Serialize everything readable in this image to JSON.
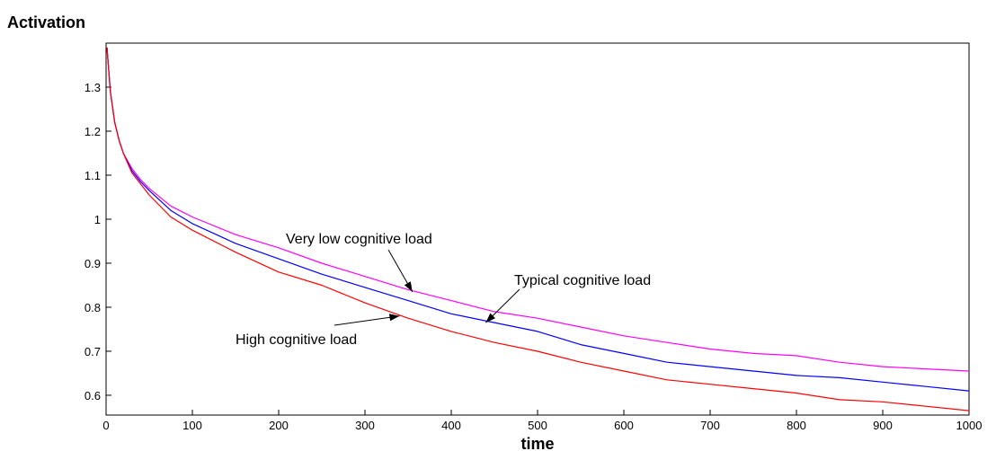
{
  "chart_data": {
    "type": "line",
    "ylabel": "Activation",
    "xlabel": "time",
    "xlim": [
      0,
      1000
    ],
    "ylim": [
      0.555,
      1.4
    ],
    "xticks": [
      0,
      100,
      200,
      300,
      400,
      500,
      600,
      700,
      800,
      900,
      1000
    ],
    "yticks": [
      0.6,
      0.7,
      0.8,
      0.9,
      1,
      1.1,
      1.2,
      1.3
    ],
    "ytick_labels": [
      "0.6",
      "0.7",
      "0.8",
      "0.9",
      "1",
      "1.1",
      "1.2",
      "1.3"
    ],
    "grid": false,
    "x": [
      1,
      5,
      10,
      15,
      20,
      30,
      40,
      50,
      75,
      100,
      150,
      200,
      250,
      300,
      350,
      400,
      450,
      500,
      550,
      600,
      650,
      700,
      750,
      800,
      850,
      900,
      950,
      1000
    ],
    "series": [
      {
        "key": "very_low",
        "color": "#ff00ff",
        "values": [
          1.39,
          1.29,
          1.22,
          1.18,
          1.15,
          1.115,
          1.09,
          1.07,
          1.03,
          1.005,
          0.965,
          0.935,
          0.9,
          0.87,
          0.84,
          0.815,
          0.79,
          0.775,
          0.755,
          0.735,
          0.72,
          0.705,
          0.695,
          0.69,
          0.675,
          0.665,
          0.66,
          0.655
        ]
      },
      {
        "key": "typical",
        "color": "#0000ff",
        "values": [
          1.39,
          1.29,
          1.22,
          1.18,
          1.15,
          1.11,
          1.085,
          1.065,
          1.02,
          0.99,
          0.945,
          0.91,
          0.875,
          0.845,
          0.815,
          0.785,
          0.765,
          0.745,
          0.715,
          0.695,
          0.675,
          0.665,
          0.655,
          0.645,
          0.64,
          0.63,
          0.62,
          0.61
        ]
      },
      {
        "key": "high",
        "color": "#ff0000",
        "values": [
          1.39,
          1.29,
          1.22,
          1.18,
          1.15,
          1.105,
          1.08,
          1.055,
          1.005,
          0.975,
          0.925,
          0.88,
          0.85,
          0.81,
          0.775,
          0.745,
          0.72,
          0.7,
          0.675,
          0.655,
          0.635,
          0.625,
          0.615,
          0.605,
          0.59,
          0.585,
          0.575,
          0.565
        ]
      }
    ],
    "annotations": [
      {
        "text": "Very low cognitive load",
        "target_x": 355,
        "target_y": 0.835
      },
      {
        "text": "Typical cognitive load",
        "target_x": 440,
        "target_y": 0.765
      },
      {
        "text": "High cognitive load",
        "target_x": 340,
        "target_y": 0.78
      }
    ]
  }
}
